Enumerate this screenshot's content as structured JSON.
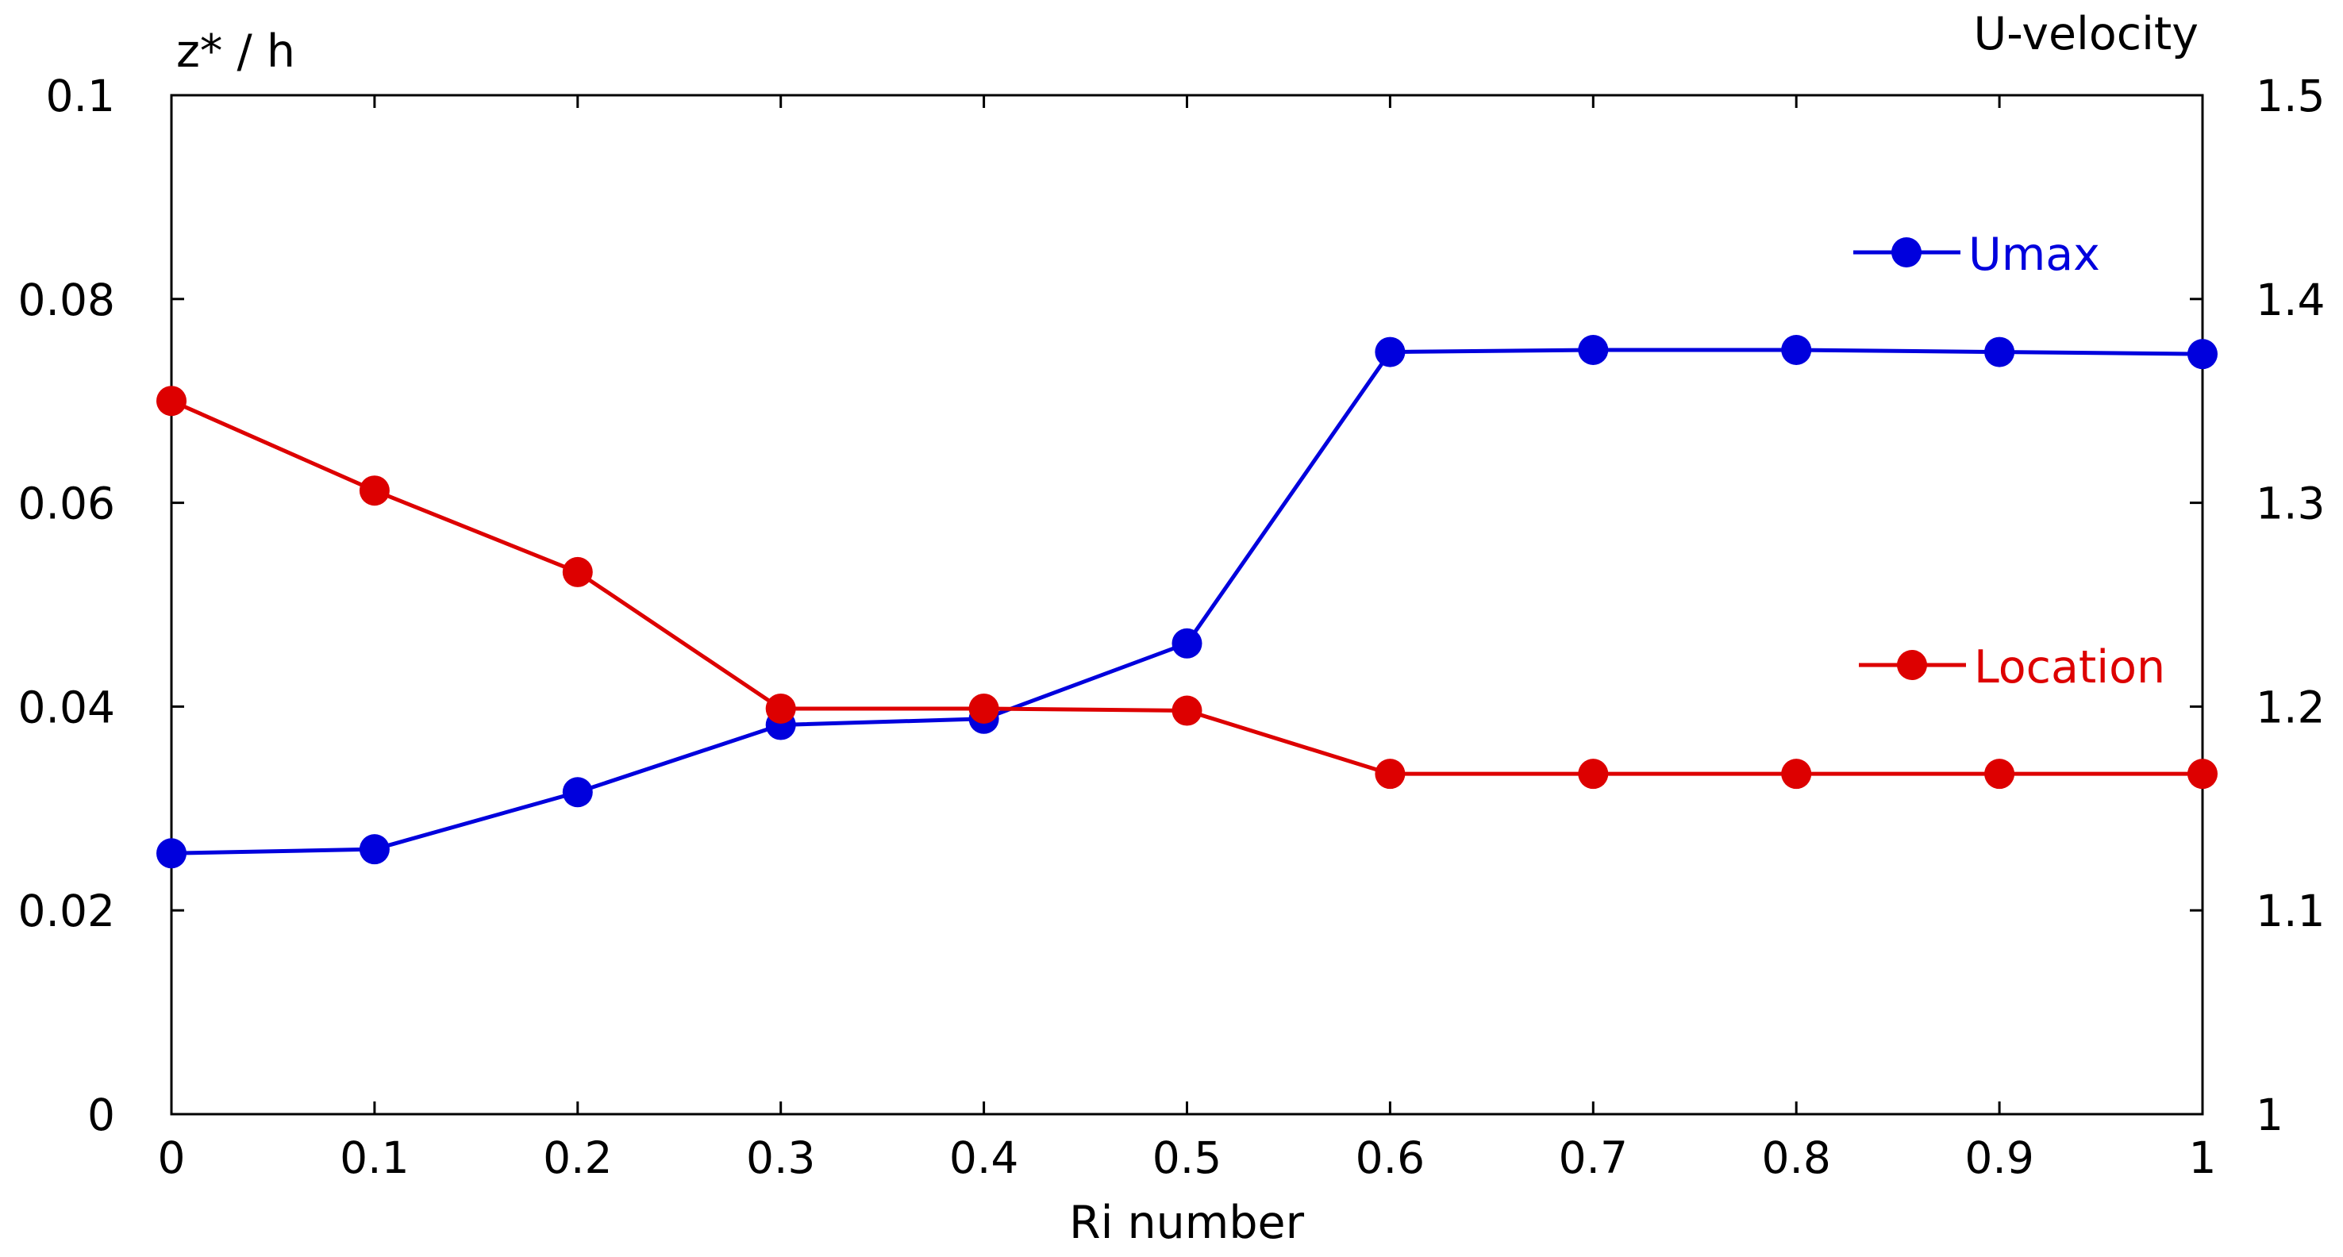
{
  "chart_data": {
    "type": "line",
    "title": "",
    "xlabel": "Ri number",
    "ylabel_left": "z* / h",
    "ylabel_right": "U-velocity",
    "xlim": [
      0,
      1
    ],
    "ylim_left": [
      0,
      0.1
    ],
    "ylim_right": [
      1,
      1.5
    ],
    "x_ticks": [
      "0",
      "0.1",
      "0.2",
      "0.3",
      "0.4",
      "0.5",
      "0.6",
      "0.7",
      "0.8",
      "0.9",
      "1"
    ],
    "y_left_ticks": [
      "0",
      "0.02",
      "0.04",
      "0.06",
      "0.08",
      "0.1"
    ],
    "y_right_ticks": [
      "1",
      "1.1",
      "1.2",
      "1.3",
      "1.4",
      "1.5"
    ],
    "grid": false,
    "legend_placement": "right",
    "x": [
      0,
      0.1,
      0.2,
      0.3,
      0.4,
      0.5,
      0.6,
      0.7,
      0.8,
      0.9,
      1.0
    ],
    "series": [
      {
        "name": "Umax",
        "axis": "right",
        "color": "#0000dd",
        "values": [
          1.128,
          1.13,
          1.158,
          1.191,
          1.194,
          1.231,
          1.374,
          1.375,
          1.375,
          1.374,
          1.373
        ]
      },
      {
        "name": "Location",
        "axis": "left",
        "color": "#dd0000",
        "values": [
          0.07,
          0.0612,
          0.0532,
          0.0398,
          0.0398,
          0.0396,
          0.0334,
          0.0334,
          0.0334,
          0.0334,
          0.0334
        ]
      }
    ]
  }
}
